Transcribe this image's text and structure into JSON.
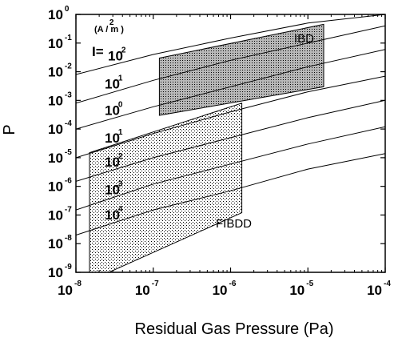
{
  "chart_data": {
    "type": "line",
    "xlabel": "Residual Gas Pressure (Pa)",
    "ylabel": "P",
    "xscale": "log",
    "yscale": "log",
    "xlim": [
      1e-08,
      0.0001
    ],
    "ylim": [
      1e-09,
      1
    ],
    "grid": false,
    "x_ticks": [
      {
        "base": "10",
        "exp": "-8"
      },
      {
        "base": "10",
        "exp": "-7"
      },
      {
        "base": "10",
        "exp": "-6"
      },
      {
        "base": "10",
        "exp": "-5"
      },
      {
        "base": "10",
        "exp": "-4"
      }
    ],
    "y_ticks": [
      {
        "base": "10",
        "exp": "0"
      },
      {
        "base": "10",
        "exp": "-1"
      },
      {
        "base": "10",
        "exp": "-2"
      },
      {
        "base": "10",
        "exp": "-3"
      },
      {
        "base": "10",
        "exp": "-4"
      },
      {
        "base": "10",
        "exp": "-5"
      },
      {
        "base": "10",
        "exp": "-6"
      },
      {
        "base": "10",
        "exp": "-7"
      },
      {
        "base": "10",
        "exp": "-8"
      },
      {
        "base": "10",
        "exp": "-9"
      }
    ],
    "units_label": {
      "text": "(A / m )",
      "exp": "2"
    },
    "curve_prefix": "I=",
    "series": [
      {
        "label": {
          "base": "10",
          "exp": "2"
        },
        "x": [
          1e-08,
          1e-07,
          1e-06,
          1e-05,
          0.0001
        ],
        "y": [
          0.008,
          0.04,
          0.15,
          0.5,
          1.0
        ]
      },
      {
        "label": {
          "base": "10",
          "exp": "1"
        },
        "x": [
          1e-08,
          1e-07,
          1e-06,
          1e-05,
          0.0001
        ],
        "y": [
          0.0008,
          0.005,
          0.025,
          0.1,
          0.4
        ]
      },
      {
        "label": {
          "base": "10",
          "exp": "0"
        },
        "x": [
          1e-08,
          1e-07,
          1e-06,
          1e-05,
          0.0001
        ],
        "y": [
          0.0001,
          0.0006,
          0.003,
          0.015,
          0.06
        ]
      },
      {
        "label": {
          "base": "10",
          "exp": "1"
        },
        "x": [
          1e-08,
          1e-07,
          1e-06,
          1e-05,
          0.0001
        ],
        "y": [
          1e-05,
          7e-05,
          0.0004,
          0.002,
          0.007
        ]
      },
      {
        "label": {
          "base": "10",
          "exp": "2"
        },
        "x": [
          1e-08,
          1e-07,
          1e-06,
          1e-05,
          0.0001
        ],
        "y": [
          1.5e-06,
          1e-05,
          5e-05,
          0.00025,
          0.001
        ]
      },
      {
        "label": {
          "base": "10",
          "exp": "3"
        },
        "x": [
          1e-08,
          1e-07,
          1e-06,
          1e-05,
          0.0001
        ],
        "y": [
          1.5e-07,
          1.2e-06,
          6e-06,
          3e-05,
          0.00012
        ]
      },
      {
        "label": {
          "base": "10",
          "exp": "4"
        },
        "x": [
          1e-08,
          1e-07,
          1e-06,
          1e-05,
          0.0001
        ],
        "y": [
          2e-08,
          1.5e-07,
          7e-07,
          4e-06,
          1.4e-05
        ]
      }
    ],
    "regions": [
      {
        "name": "IBD",
        "fill": "#b8b8b8",
        "pattern": "dense",
        "polygon": [
          [
            1.2e-07,
            0.03
          ],
          [
            1.6e-05,
            0.45
          ],
          [
            1.6e-05,
            0.003
          ],
          [
            1.2e-07,
            0.0003
          ]
        ]
      },
      {
        "name": "FIBDD",
        "fill": "#ffffff",
        "pattern": "dots",
        "polygon": [
          [
            1.5e-08,
            1.5e-05
          ],
          [
            1.4e-06,
            0.0008
          ],
          [
            1.4e-06,
            1.2e-07
          ],
          [
            1.5e-08,
            5e-10
          ]
        ]
      }
    ]
  }
}
